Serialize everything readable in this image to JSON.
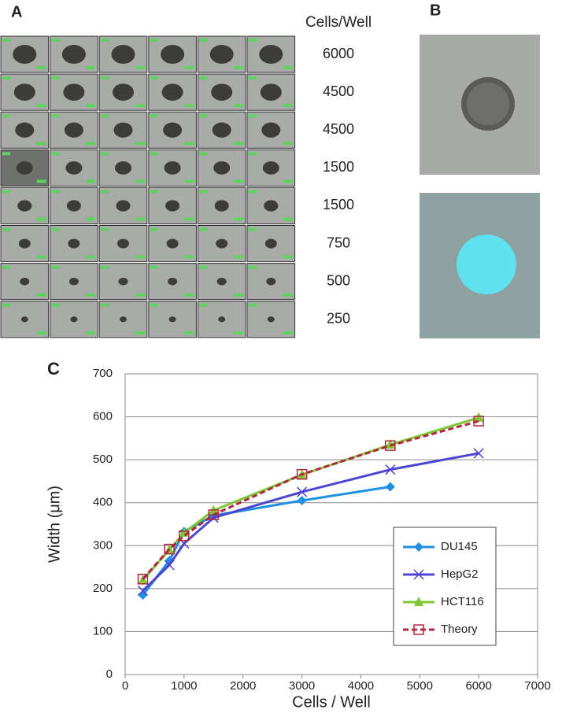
{
  "panel_a": {
    "label": "A",
    "column_title": "Cells/Well",
    "row_labels": [
      "6000",
      "4500",
      "4500",
      "1500",
      "1500",
      "750",
      "500",
      "250"
    ]
  },
  "panel_b": {
    "label": "B"
  },
  "chart_data": {
    "type": "line",
    "panel_label": "C",
    "x_label": "Cells / Well",
    "y_label": "Width (μm)",
    "xlim": [
      0,
      7000
    ],
    "xticks": [
      0,
      1000,
      2000,
      3000,
      4000,
      5000,
      6000,
      7000
    ],
    "ylim": [
      0,
      700
    ],
    "yticks": [
      0,
      100,
      200,
      300,
      400,
      500,
      600,
      700
    ],
    "grid": true,
    "legend": "lower-right",
    "series": [
      {
        "name": "DU145",
        "color": "#1e8fe1",
        "marker": "diamond",
        "x": [
          300,
          750,
          1000,
          1500,
          3000,
          4500
        ],
        "values": [
          185,
          265,
          333,
          370,
          405,
          437
        ]
      },
      {
        "name": "HepG2",
        "color": "#4b45d0",
        "marker": "x",
        "x": [
          300,
          750,
          1000,
          1500,
          3000,
          4500,
          6000
        ],
        "values": [
          195,
          255,
          305,
          365,
          425,
          477,
          515
        ]
      },
      {
        "name": "HCT116",
        "color": "#7cc934",
        "marker": "triangle",
        "x": [
          300,
          750,
          1000,
          1500,
          3000,
          4500,
          6000
        ],
        "values": [
          220,
          290,
          330,
          382,
          465,
          535,
          598
        ]
      },
      {
        "name": "Theory",
        "color": "#b3263f",
        "marker": "open-square",
        "dashed": true,
        "x": [
          300,
          750,
          1000,
          1500,
          3000,
          4500,
          6000
        ],
        "values": [
          222,
          292,
          323,
          372,
          466,
          533,
          590
        ]
      }
    ]
  }
}
